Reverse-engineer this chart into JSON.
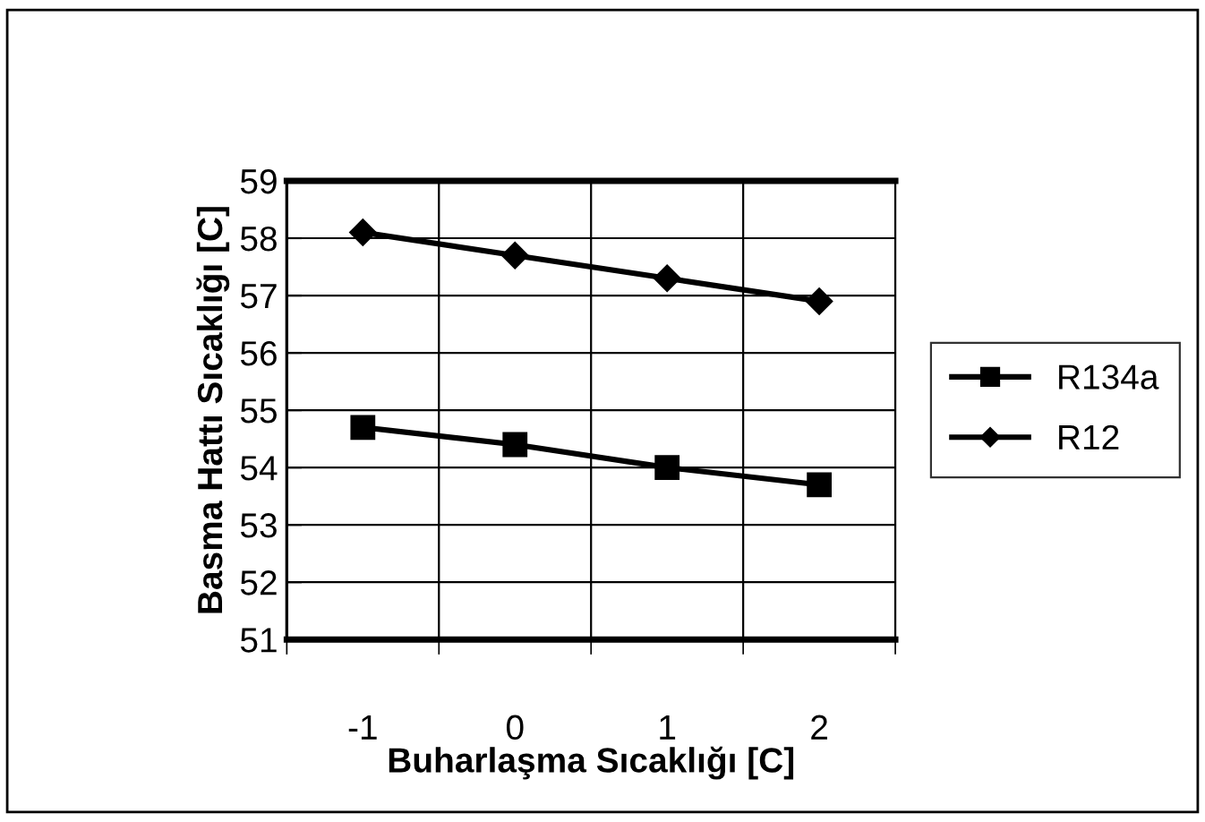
{
  "chart_data": {
    "type": "line",
    "xlabel": "Buharlaşma Sıcaklığı [C]",
    "ylabel": "Basma Hattı Sıcaklığı [C]",
    "categories": [
      "-1",
      "0",
      "1",
      "2"
    ],
    "series": [
      {
        "name": "R134a",
        "color": "#000000",
        "marker": "square",
        "values": [
          54.7,
          54.4,
          54.0,
          53.7
        ]
      },
      {
        "name": "R12",
        "color": "#000000",
        "marker": "diamond",
        "values": [
          58.1,
          57.7,
          57.3,
          56.9
        ]
      }
    ],
    "ylim": [
      51,
      59
    ],
    "yticks": [
      51,
      52,
      53,
      54,
      55,
      56,
      57,
      58,
      59
    ],
    "grid": true,
    "legend": "right",
    "line_style": "solid"
  }
}
